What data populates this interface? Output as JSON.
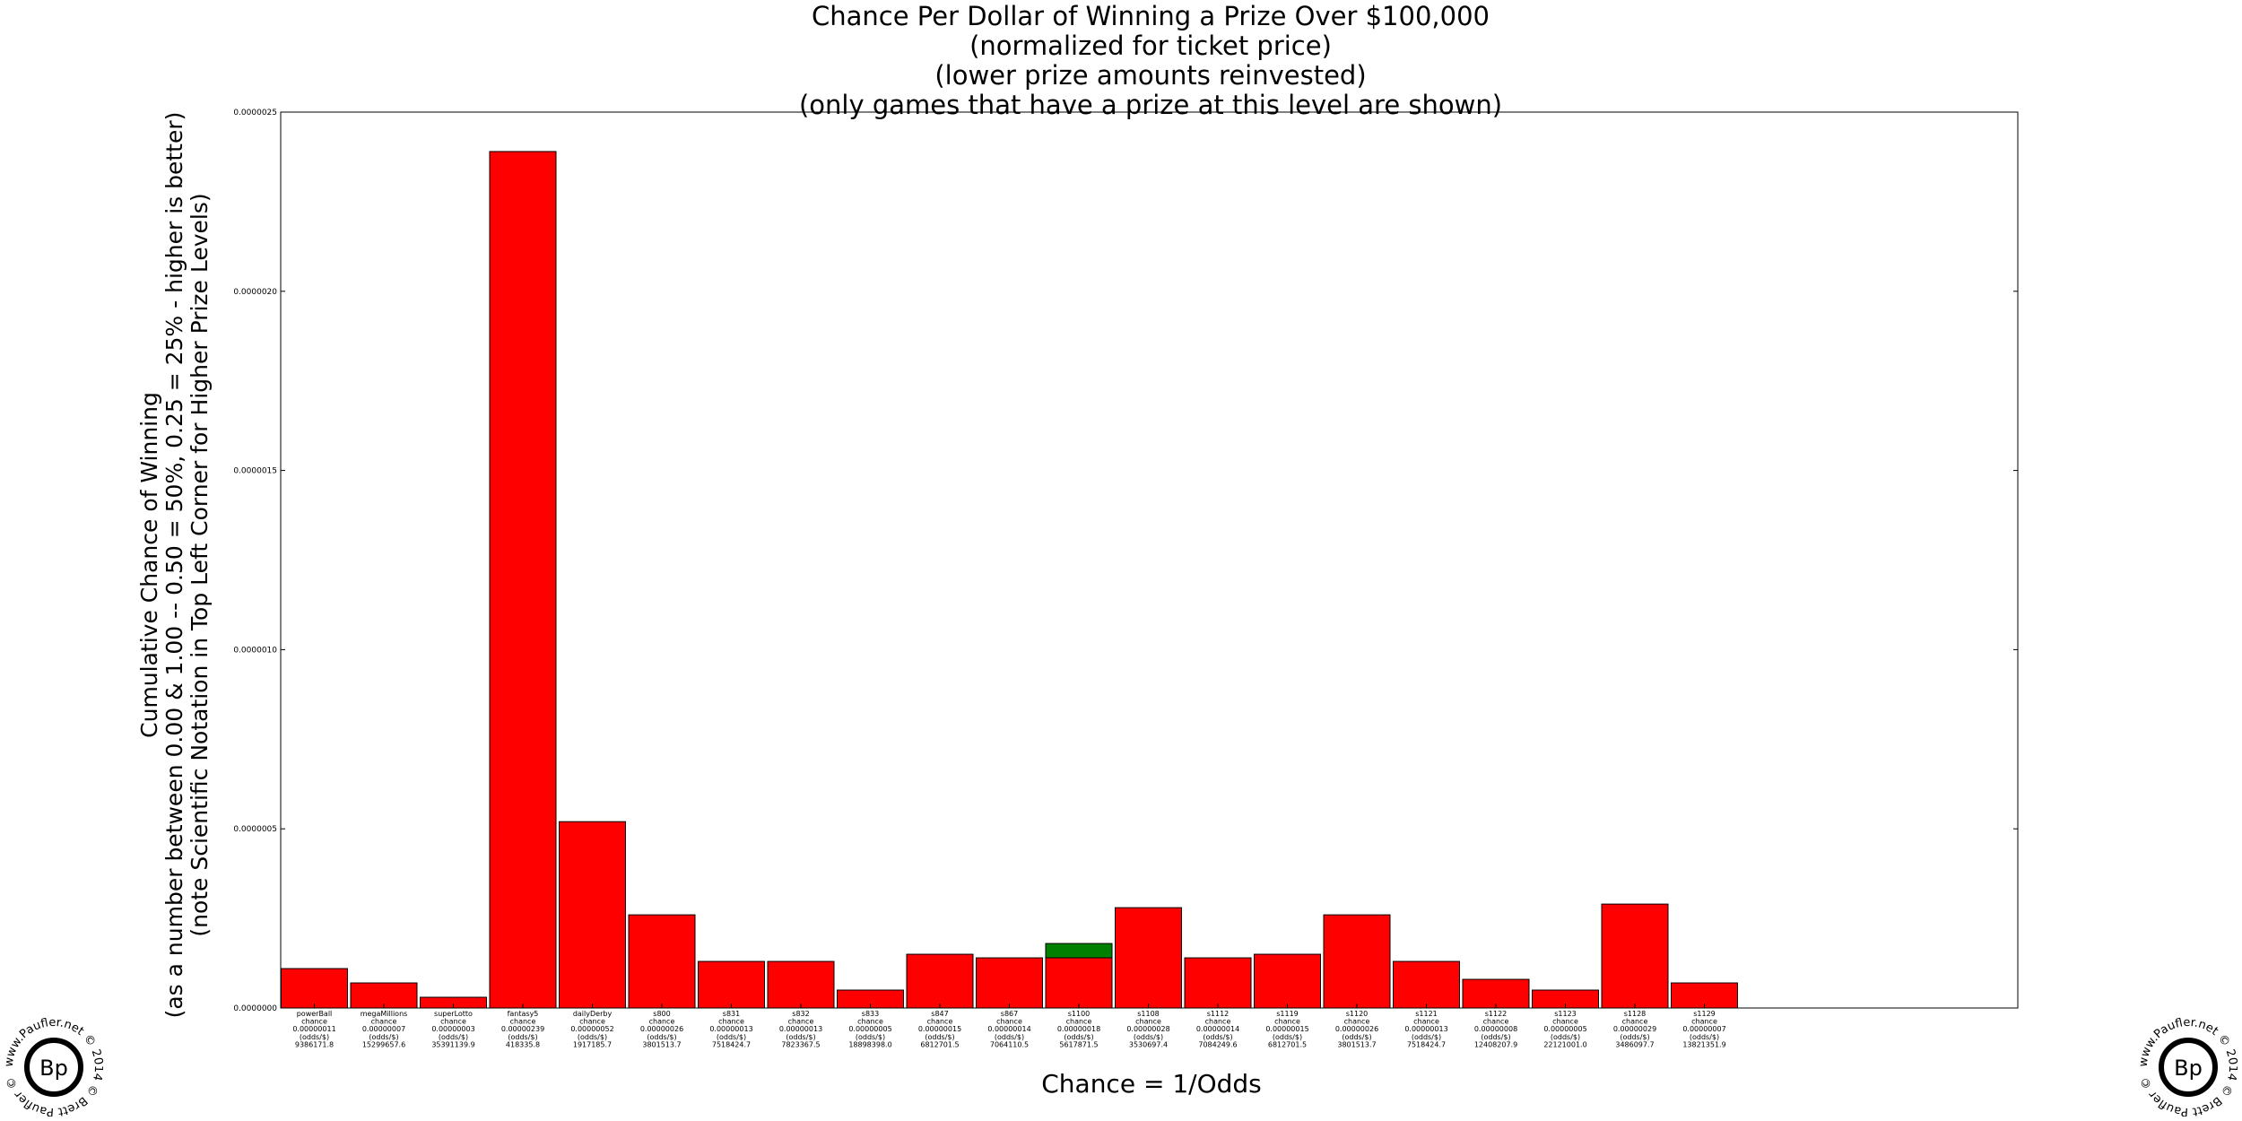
{
  "chart_data": {
    "type": "bar",
    "title": [
      "Chance Per Dollar of Winning a Prize Over $100,000",
      "(normalized for ticket price)",
      "(lower prize amounts reinvested)",
      "(only games that have a prize at this level are shown)"
    ],
    "ylabel": [
      "Cumulative Chance of Winning",
      "(as a number between 0.00 & 1.00 -- 0.50 = 50%, 0.25 = 25% - higher is better)",
      "(note Scientific Notation in Top Left Corner for Higher Prize Levels)"
    ],
    "xlabel": "Chance = 1/Odds",
    "ylim": [
      0,
      2.5e-06
    ],
    "yticks": [
      "0.0000000",
      "0.0000005",
      "0.0000010",
      "0.0000015",
      "0.0000020",
      "0.0000025"
    ],
    "grid": false,
    "bar_color": "#ff0000",
    "highlight_color": "#008000",
    "bars": [
      {
        "name": "powerBall",
        "value": 1.1e-07,
        "labels": [
          "powerBall",
          "chance",
          "0.00000011",
          "(odds/$)",
          "9386171.8"
        ]
      },
      {
        "name": "megaMillions",
        "value": 7e-08,
        "labels": [
          "megaMillions",
          "chance",
          "0.00000007",
          "(odds/$)",
          "15299657.6"
        ]
      },
      {
        "name": "superLotto",
        "value": 3e-08,
        "labels": [
          "superLotto",
          "chance",
          "0.00000003",
          "(odds/$)",
          "35391139.9"
        ]
      },
      {
        "name": "fantasy5",
        "value": 2.39e-06,
        "labels": [
          "fantasy5",
          "chance",
          "0.00000239",
          "(odds/$)",
          "418335.8"
        ]
      },
      {
        "name": "dailyDerby",
        "value": 5.2e-07,
        "labels": [
          "dailyDerby",
          "chance",
          "0.00000052",
          "(odds/$)",
          "1917185.7"
        ]
      },
      {
        "name": "s800",
        "value": 2.6e-07,
        "labels": [
          "s800",
          "chance",
          "0.00000026",
          "(odds/$)",
          "3801513.7"
        ]
      },
      {
        "name": "s831",
        "value": 1.3e-07,
        "labels": [
          "s831",
          "chance",
          "0.00000013",
          "(odds/$)",
          "7518424.7"
        ]
      },
      {
        "name": "s832",
        "value": 1.3e-07,
        "labels": [
          "s832",
          "chance",
          "0.00000013",
          "(odds/$)",
          "7823367.5"
        ]
      },
      {
        "name": "s833",
        "value": 5e-08,
        "labels": [
          "s833",
          "chance",
          "0.00000005",
          "(odds/$)",
          "18898398.0"
        ]
      },
      {
        "name": "s847",
        "value": 1.5e-07,
        "labels": [
          "s847",
          "chance",
          "0.00000015",
          "(odds/$)",
          "6812701.5"
        ]
      },
      {
        "name": "s867",
        "value": 1.4e-07,
        "labels": [
          "s867",
          "chance",
          "0.00000014",
          "(odds/$)",
          "7064110.5"
        ]
      },
      {
        "name": "s1100",
        "value": 1.8e-07,
        "base_value": 1.4e-07,
        "labels": [
          "s1100",
          "chance",
          "0.00000018",
          "(odds/$)",
          "5617871.5"
        ]
      },
      {
        "name": "s1108",
        "value": 2.8e-07,
        "labels": [
          "s1108",
          "chance",
          "0.00000028",
          "(odds/$)",
          "3530697.4"
        ]
      },
      {
        "name": "s1112",
        "value": 1.4e-07,
        "labels": [
          "s1112",
          "chance",
          "0.00000014",
          "(odds/$)",
          "7084249.6"
        ]
      },
      {
        "name": "s1119",
        "value": 1.5e-07,
        "labels": [
          "s1119",
          "chance",
          "0.00000015",
          "(odds/$)",
          "6812701.5"
        ]
      },
      {
        "name": "s1120",
        "value": 2.6e-07,
        "labels": [
          "s1120",
          "chance",
          "0.00000026",
          "(odds/$)",
          "3801513.7"
        ]
      },
      {
        "name": "s1121",
        "value": 1.3e-07,
        "labels": [
          "s1121",
          "chance",
          "0.00000013",
          "(odds/$)",
          "7518424.7"
        ]
      },
      {
        "name": "s1122",
        "value": 8e-08,
        "labels": [
          "s1122",
          "chance",
          "0.00000008",
          "(odds/$)",
          "12408207.9"
        ]
      },
      {
        "name": "s1123",
        "value": 5e-08,
        "labels": [
          "s1123",
          "chance",
          "0.00000005",
          "(odds/$)",
          "22121001.0"
        ]
      },
      {
        "name": "s1128",
        "value": 2.9e-07,
        "labels": [
          "s1128",
          "chance",
          "0.00000029",
          "(odds/$)",
          "3486097.7"
        ]
      },
      {
        "name": "s1129",
        "value": 7e-08,
        "labels": [
          "s1129",
          "chance",
          "0.00000007",
          "(odds/$)",
          "13821351.9"
        ]
      }
    ]
  },
  "watermark": {
    "logo_text": "Bp",
    "ring_text": "www.Paufler.net © 2014 © Brett Paufler ©"
  }
}
